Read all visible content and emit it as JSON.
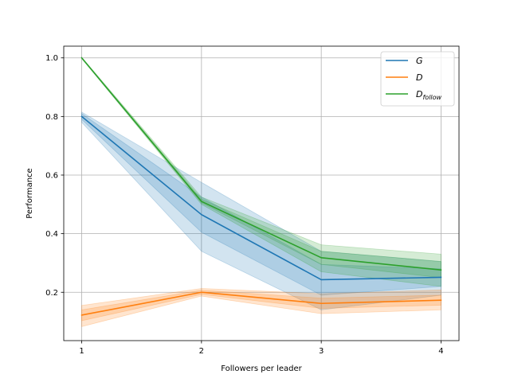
{
  "chart_data": {
    "type": "line",
    "xlabel": "Followers per leader",
    "ylabel": "Performance",
    "x": [
      1,
      2,
      3,
      4
    ],
    "xticks": [
      "1",
      "2",
      "3",
      "4"
    ],
    "yticks": [
      "0.2",
      "0.4",
      "0.6",
      "0.8",
      "1.0"
    ],
    "ytick_values": [
      0.2,
      0.4,
      0.6,
      0.8,
      1.0
    ],
    "xlim": [
      0.85,
      4.15
    ],
    "ylim": [
      0.035,
      1.04
    ],
    "grid": true,
    "legend_position": "top-right",
    "series": [
      {
        "name": "G",
        "name_subscript": "",
        "color": "#1f77b4",
        "values": [
          0.8,
          0.465,
          0.243,
          0.251
        ],
        "bands": [
          {
            "lower": [
              0.78,
              0.34,
              0.14,
              0.19
            ],
            "upper": [
              0.815,
              0.575,
              0.34,
              0.305
            ]
          },
          {
            "lower": [
              0.79,
              0.405,
              0.19,
              0.22
            ],
            "upper": [
              0.81,
              0.525,
              0.295,
              0.28
            ]
          }
        ]
      },
      {
        "name": "D",
        "name_subscript": "",
        "color": "#ff7f0e",
        "values": [
          0.122,
          0.2,
          0.162,
          0.173
        ],
        "bands": [
          {
            "lower": [
              0.083,
              0.187,
              0.127,
              0.14
            ],
            "upper": [
              0.155,
              0.213,
              0.195,
              0.208
            ]
          },
          {
            "lower": [
              0.103,
              0.193,
              0.145,
              0.156
            ],
            "upper": [
              0.14,
              0.207,
              0.18,
              0.19
            ]
          }
        ]
      },
      {
        "name": "D",
        "name_subscript": "follow",
        "color": "#2ca02c",
        "values": [
          1.0,
          0.51,
          0.318,
          0.276
        ],
        "bands": [
          {
            "lower": [
              0.998,
              0.5,
              0.27,
              0.22
            ],
            "upper": [
              1.002,
              0.525,
              0.362,
              0.33
            ]
          },
          {
            "lower": [
              0.999,
              0.505,
              0.295,
              0.25
            ],
            "upper": [
              1.001,
              0.518,
              0.34,
              0.305
            ]
          }
        ]
      }
    ]
  }
}
